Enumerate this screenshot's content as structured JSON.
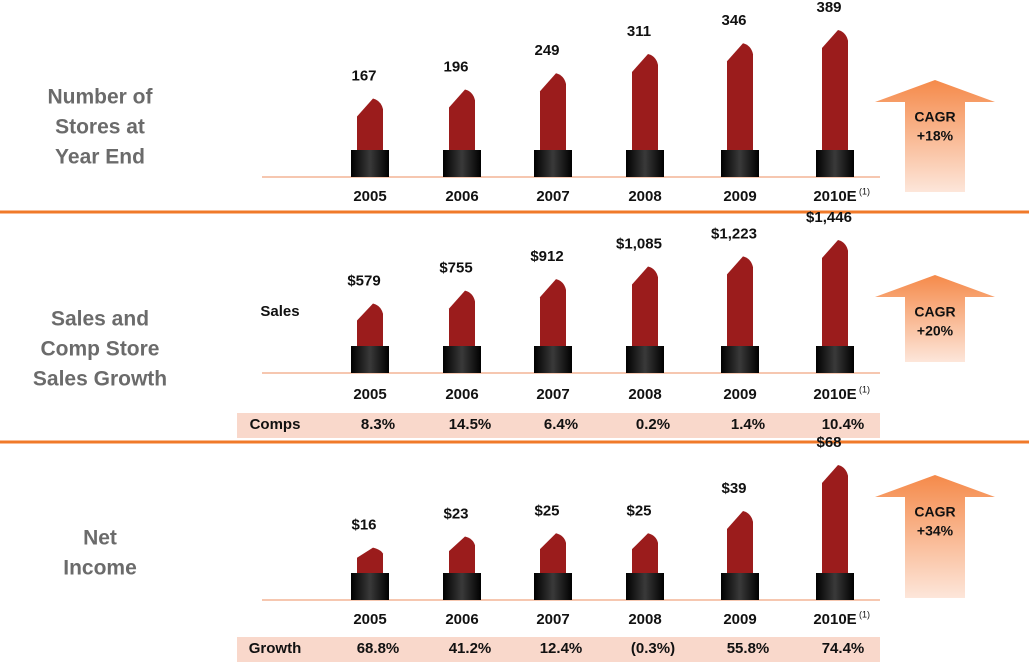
{
  "chart_data": [
    {
      "type": "lipstick",
      "title": [
        "Number of",
        "Stores at",
        "Year End"
      ],
      "categories": [
        "2005",
        "2006",
        "2007",
        "2008",
        "2009",
        "2010E"
      ],
      "category_note": "(1)",
      "series": [
        {
          "color": "#9b1c1c",
          "values": [
            167,
            196,
            249,
            311,
            346,
            389
          ]
        }
      ],
      "annotations": [
        "CAGR",
        "+18%"
      ]
    },
    {
      "type": "lipstick",
      "title": [
        "Sales and",
        "Comp Store",
        "Sales Growth"
      ],
      "categories": [
        "2005",
        "2006",
        "2007",
        "2008",
        "2009",
        "2010E"
      ],
      "category_note": "(1)",
      "series": [
        {
          "name": "Sales",
          "color": "#9b1c1c",
          "values": [
            579,
            755,
            912,
            1085,
            1223,
            1446
          ],
          "value_labels": [
            "$579",
            "$755",
            "$912",
            "$1,085",
            "$1,223",
            "$1,446"
          ]
        }
      ],
      "row": {
        "name": "Comps",
        "values": [
          8.3,
          14.5,
          6.4,
          0.2,
          1.4,
          10.4
        ],
        "value_labels": [
          "8.3%",
          "14.5%",
          "6.4%",
          "0.2%",
          "1.4%",
          "10.4%"
        ]
      },
      "annotations": [
        "CAGR",
        "+20%"
      ]
    },
    {
      "type": "lipstick",
      "title": [
        "Net",
        "Income"
      ],
      "categories": [
        "2005",
        "2006",
        "2007",
        "2008",
        "2009",
        "2010E"
      ],
      "category_note": "(1)",
      "series": [
        {
          "color": "#9b1c1c",
          "values": [
            16,
            23,
            25,
            25,
            39,
            68
          ],
          "value_labels": [
            "$16",
            "$23",
            "$25",
            "$25",
            "$39",
            "$68"
          ]
        }
      ],
      "row": {
        "name": "Growth",
        "values": [
          68.8,
          41.2,
          12.4,
          -0.3,
          55.8,
          74.4
        ],
        "value_labels": [
          "68.8%",
          "41.2%",
          "12.4%",
          "(0.3%)",
          "55.8%",
          "74.4%"
        ]
      },
      "annotations": [
        "CAGR",
        "+34%"
      ]
    }
  ]
}
